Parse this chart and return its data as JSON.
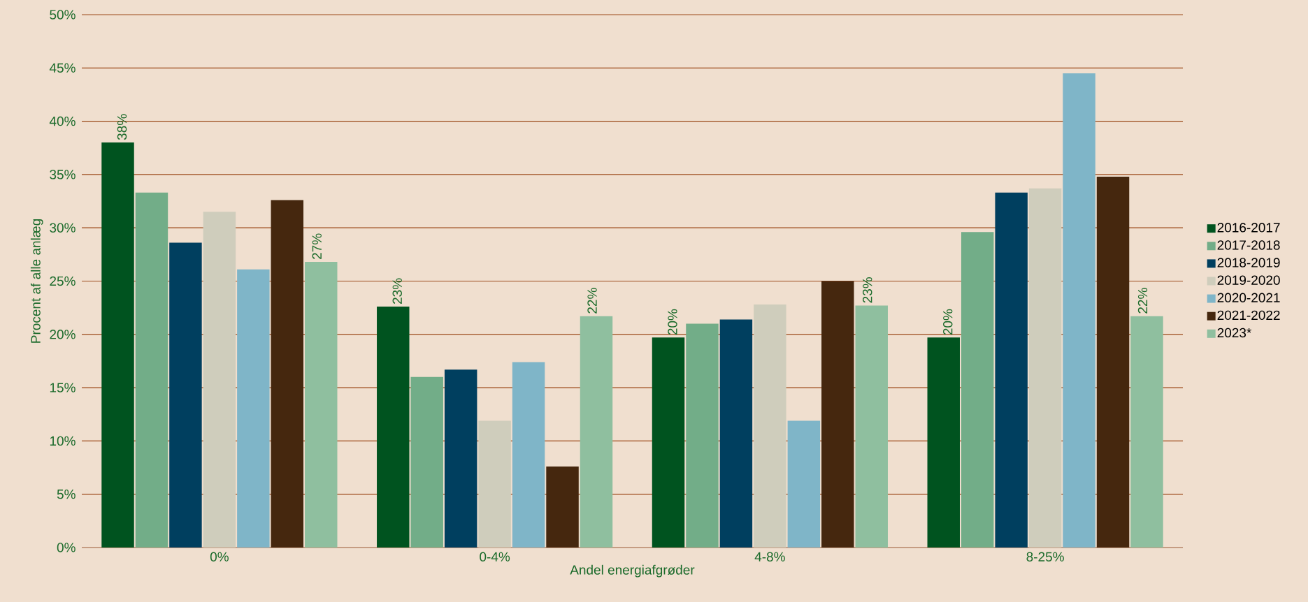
{
  "chart_data": {
    "type": "bar",
    "xlabel": "Andel energiafgrøder",
    "ylabel": "Procent af alle anlæg",
    "categories": [
      "0%",
      "0-4%",
      "4-8%",
      "8-25%"
    ],
    "series": [
      {
        "name": "2016-2017",
        "color": "#00531f",
        "values": [
          38.0,
          22.6,
          19.7,
          19.7
        ],
        "value_labels": [
          "38%",
          "23%",
          "20%",
          "20%"
        ]
      },
      {
        "name": "2017-2018",
        "color": "#72ad88",
        "values": [
          33.3,
          16.0,
          21.0,
          29.6
        ]
      },
      {
        "name": "2018-2019",
        "color": "#003f5f",
        "values": [
          28.6,
          16.7,
          21.4,
          33.3
        ]
      },
      {
        "name": "2019-2020",
        "color": "#cfcdbc",
        "values": [
          31.5,
          11.9,
          22.8,
          33.7
        ]
      },
      {
        "name": "2020-2021",
        "color": "#7fb5c8",
        "values": [
          26.1,
          17.4,
          11.9,
          44.5
        ]
      },
      {
        "name": "2021-2022",
        "color": "#45270e",
        "values": [
          32.6,
          7.6,
          25.0,
          34.8
        ]
      },
      {
        "name": "2023*",
        "color": "#8fbf9f",
        "values": [
          26.8,
          21.7,
          22.7,
          21.7
        ],
        "value_labels": [
          "27%",
          "22%",
          "23%",
          "22%"
        ]
      }
    ],
    "ylim": [
      0,
      50
    ],
    "yticks": [
      {
        "value": 0,
        "label": "0%"
      },
      {
        "value": 5,
        "label": "5%"
      },
      {
        "value": 10,
        "label": "10%"
      },
      {
        "value": 15,
        "label": "15%"
      },
      {
        "value": 20,
        "label": "20%"
      },
      {
        "value": 25,
        "label": "25%"
      },
      {
        "value": 30,
        "label": "30%"
      },
      {
        "value": 35,
        "label": "35%"
      },
      {
        "value": 40,
        "label": "40%"
      },
      {
        "value": 45,
        "label": "45%"
      },
      {
        "value": 50,
        "label": "50%"
      }
    ],
    "grid": "y",
    "legend": "right"
  }
}
